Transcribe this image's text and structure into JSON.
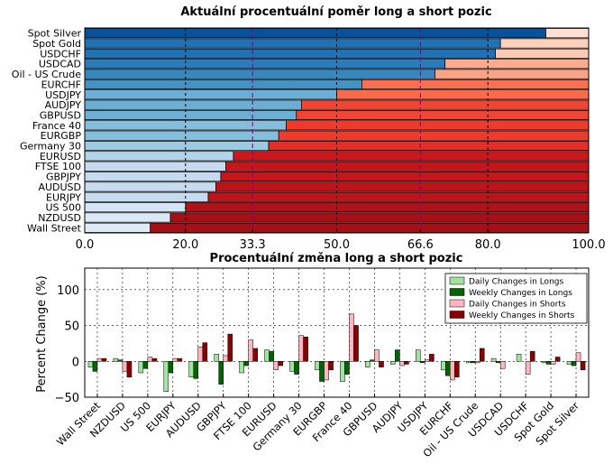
{
  "chart_data": [
    {
      "type": "bar",
      "orientation": "horizontal",
      "stacked": true,
      "title": "Aktuální procentuální poměr long a short pozic",
      "xlim": [
        0,
        100
      ],
      "x_ticks": [
        "0.0",
        "20.0",
        "33.3",
        "50.0",
        "66.6",
        "80.0",
        "100.0"
      ],
      "highlight_ticks": [
        "33.3",
        "66.6"
      ],
      "grid": true,
      "categories": [
        "Spot Silver",
        "Spot Gold",
        "USDCHF",
        "USDCAD",
        "Oil - US Crude",
        "EURCHF",
        "USDJPY",
        "AUDJPY",
        "GBPUSD",
        "France 40",
        "EURGBP",
        "Germany 30",
        "EURUSD",
        "FTSE 100",
        "GBPJPY",
        "AUDUSD",
        "EURJPY",
        "US 500",
        "NZDUSD",
        "Wall Street"
      ],
      "series": [
        {
          "values": [
            91.5,
            82.5,
            81.5,
            71.5,
            69.5,
            55,
            50,
            43,
            42,
            40,
            38.5,
            36.5,
            29.5,
            28,
            27,
            26,
            24.5,
            20,
            17,
            13
          ]
        },
        {
          "values": [
            8.5,
            17.5,
            18.5,
            28.5,
            30.5,
            45,
            50,
            57,
            58,
            60,
            61.5,
            63.5,
            70.5,
            72,
            73,
            74,
            75.5,
            80,
            83,
            87
          ]
        }
      ],
      "colors": {
        "long": [
          "#08519c",
          "#2171b5",
          "#2171b5",
          "#2b7bba",
          "#3787c0",
          "#4292c6",
          "#6baed6",
          "#6baed6",
          "#6baed6",
          "#86bcdc",
          "#86bcdc",
          "#9ecae1",
          "#b2d3e8",
          "#c6dbef",
          "#c6dbef",
          "#c6dbef",
          "#c6dbef",
          "#d4e4f4",
          "#dbe9f6",
          "#deebf7"
        ],
        "short": [
          "#fee0d2",
          "#fdd0bc",
          "#fdcab5",
          "#fcab8f",
          "#fca285",
          "#fb7050",
          "#fb6a4a",
          "#f14432",
          "#f14432",
          "#ef3b2c",
          "#ef3b2c",
          "#e32f27",
          "#cb181d",
          "#c4161c",
          "#c4161c",
          "#bc141a",
          "#bc141a",
          "#b11218",
          "#a50f15",
          "#a50f15"
        ]
      }
    },
    {
      "type": "bar",
      "title": "Procentuální změna long a short pozic",
      "ylabel": "Percent Change (%)",
      "ylim": [
        -50,
        130
      ],
      "y_ticks": [
        "−50",
        "0",
        "50",
        "100"
      ],
      "grid": true,
      "legend_position": "top-right",
      "categories": [
        "Wall Street",
        "NZDUSD",
        "US 500",
        "EURJPY",
        "AUDUSD",
        "GBPJPY",
        "FTSE 100",
        "EURUSD",
        "Germany 30",
        "EURGBP",
        "France 40",
        "GBPUSD",
        "AUDJPY",
        "USDJPY",
        "EURCHF",
        "Oil - US Crude",
        "USDCAD",
        "USDCHF",
        "Spot Gold",
        "Spot Silver"
      ],
      "series": [
        {
          "name": "Daily Changes in Longs",
          "color": "#a1e3a1",
          "values": [
            -8,
            4,
            -16,
            -42,
            -22,
            10,
            -16,
            16,
            -14,
            -12,
            -28,
            -8,
            -4,
            16,
            -12,
            -2,
            4,
            10,
            -2,
            -4
          ]
        },
        {
          "name": "Weekly Changes in Longs",
          "color": "#006400",
          "values": [
            -14,
            2,
            -10,
            -16,
            -24,
            -32,
            -6,
            14,
            -18,
            -28,
            -18,
            2,
            16,
            -2,
            -20,
            -2,
            -2,
            0,
            -4,
            -6
          ]
        },
        {
          "name": "Daily Changes in Shorts",
          "color": "#ffb6c1",
          "values": [
            4,
            -14,
            6,
            4,
            20,
            8,
            30,
            -12,
            36,
            -26,
            66,
            16,
            -6,
            2,
            -26,
            -2,
            -10,
            -18,
            -4,
            12
          ]
        },
        {
          "name": "Weekly Changes in Shorts",
          "color": "#8b0000",
          "values": [
            4,
            -22,
            4,
            4,
            26,
            38,
            18,
            -6,
            34,
            -12,
            50,
            -8,
            -4,
            10,
            -22,
            18,
            0,
            14,
            6,
            -12
          ]
        }
      ]
    }
  ]
}
